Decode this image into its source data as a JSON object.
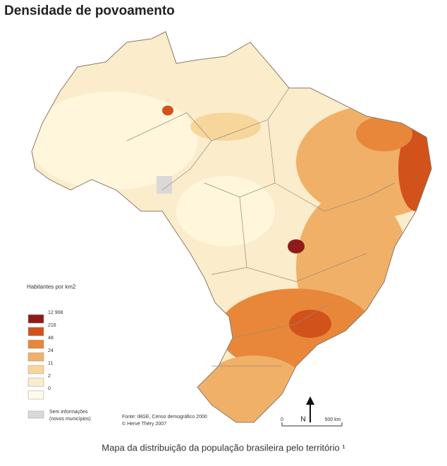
{
  "title": "Densidade de povoamento",
  "legend": {
    "title": "Habitantes por km2",
    "items": [
      {
        "label": "12 908",
        "color": "#8e1b1b"
      },
      {
        "label": "216",
        "color": "#d2521b"
      },
      {
        "label": "48",
        "color": "#e8873a"
      },
      {
        "label": "24",
        "color": "#f0b067"
      },
      {
        "label": "11",
        "color": "#f7d69c"
      },
      {
        "label": "2",
        "color": "#fbeccb"
      },
      {
        "label": "0",
        "color": "#fffbea"
      }
    ],
    "no_data": {
      "label": "Sem informações",
      "sublabel": "(novos municípios)",
      "color": "#d9d9d9"
    }
  },
  "source": {
    "line1": "Fonte: IBGE, Censo demográfico 2000",
    "line2": "© Hervé Théry 2007"
  },
  "scale": {
    "start": "0",
    "end": "500 km",
    "north": "N"
  },
  "caption": "Mapa da distribuição da população brasileira pelo território ¹"
}
